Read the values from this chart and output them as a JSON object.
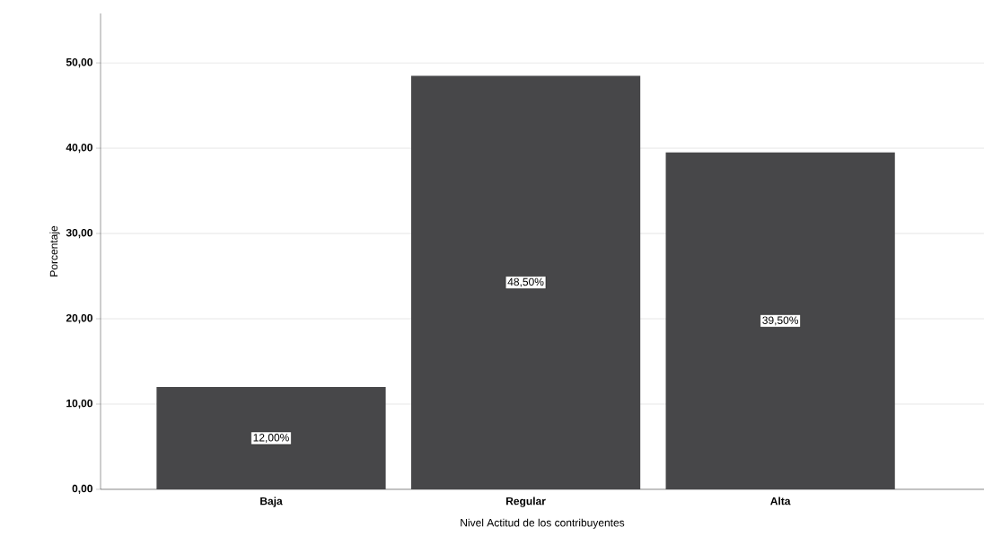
{
  "chart_data": {
    "type": "bar",
    "xlabel": "Nivel Actitud de los contribuyentes",
    "ylabel": "Porcentaje",
    "categories": [
      "Baja",
      "Regular",
      "Alta"
    ],
    "values": [
      12.0,
      48.5,
      39.5
    ],
    "value_labels": [
      "12,00%",
      "48,50%",
      "39,50%"
    ],
    "color": "#474749",
    "ylim": [
      0,
      55.8
    ],
    "yticks": [
      {
        "value": 0,
        "label": "0,00"
      },
      {
        "value": 10,
        "label": "10,00"
      },
      {
        "value": 20,
        "label": "20,00"
      },
      {
        "value": 30,
        "label": "30,00"
      },
      {
        "value": 40,
        "label": "40,00"
      },
      {
        "value": 50,
        "label": "50,00"
      }
    ],
    "grid": "y"
  }
}
